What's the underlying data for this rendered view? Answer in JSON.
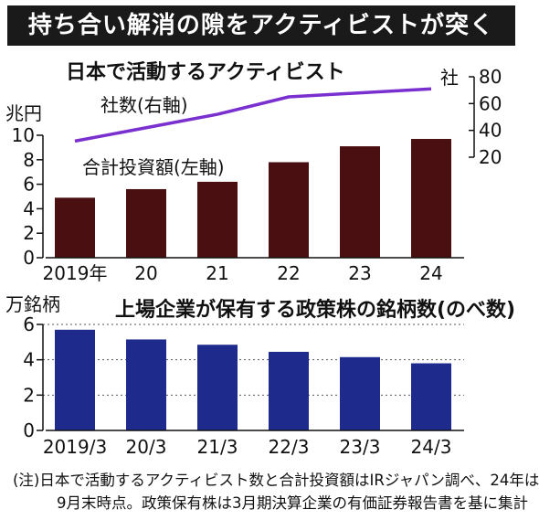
{
  "header": {
    "title": "持ち合い解消の隙をアクティビストが突く"
  },
  "colors": {
    "header_bg": "#1a1a1a",
    "bar_top": "#4a0f10",
    "bar_bottom": "#1e2b8c",
    "line": "#7a2fcf"
  },
  "chart_data": [
    {
      "type": "bar",
      "title": "日本で活動するアクティビスト",
      "categories": [
        "2019年",
        "20",
        "21",
        "22",
        "23",
        "24"
      ],
      "series": [
        {
          "name": "合計投資額(左軸)",
          "values": [
            4.9,
            5.6,
            6.2,
            7.8,
            9.1,
            9.7
          ]
        },
        {
          "name": "社数(右軸)",
          "type": "line",
          "axis": "right",
          "values": [
            32,
            42,
            52,
            65,
            68,
            71
          ]
        }
      ],
      "ylabel": "兆円",
      "ylim": [
        0,
        10
      ],
      "yticks": [
        "0",
        "2",
        "4",
        "6",
        "8",
        "10"
      ],
      "y2label": "社",
      "y2lim": [
        20,
        80
      ],
      "y2ticks": [
        "20",
        "40",
        "60",
        "80"
      ],
      "grid": false
    },
    {
      "type": "bar",
      "title": "上場企業が保有する政策株の銘柄数(のべ数)",
      "categories": [
        "2019/3",
        "20/3",
        "21/3",
        "22/3",
        "23/3",
        "24/3"
      ],
      "series": [
        {
          "values": [
            5.7,
            5.15,
            4.85,
            4.45,
            4.15,
            3.8
          ]
        }
      ],
      "ylabel": "万銘柄",
      "ylim": [
        0,
        6
      ],
      "yticks": [
        "0",
        "2",
        "4",
        "6"
      ],
      "grid": true
    }
  ],
  "note": {
    "line1": "(注)日本で活動するアクティビスト数と合計投資額はIRジャパン調べ、24年は",
    "line2": "9月末時点。政策保有株は3月期決算企業の有価証券報告書を基に集計"
  }
}
